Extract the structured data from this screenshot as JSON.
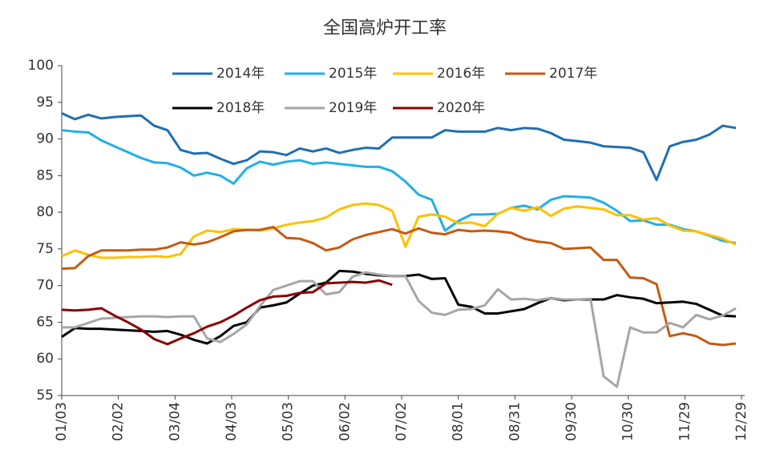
{
  "chart_data": {
    "type": "line",
    "title": "全国高炉开工率",
    "x": [
      0,
      7,
      14,
      21,
      28,
      35,
      42,
      49,
      56,
      63,
      70,
      77,
      84,
      91,
      98,
      105,
      112,
      119,
      126,
      133,
      140,
      147,
      154,
      161,
      168,
      175,
      182,
      189,
      196,
      203,
      210,
      217,
      224,
      231,
      238,
      245,
      252,
      259,
      266,
      273,
      280,
      287,
      294,
      301,
      308,
      315,
      322,
      329,
      336,
      343,
      350,
      357
    ],
    "xlim": [
      0,
      360
    ],
    "xticks": [
      {
        "value": 0,
        "label": "01/03"
      },
      {
        "value": 30,
        "label": "02/02"
      },
      {
        "value": 60,
        "label": "03/04"
      },
      {
        "value": 90,
        "label": "04/03"
      },
      {
        "value": 120,
        "label": "05/03"
      },
      {
        "value": 150,
        "label": "06/02"
      },
      {
        "value": 180,
        "label": "07/02"
      },
      {
        "value": 210,
        "label": "08/01"
      },
      {
        "value": 240,
        "label": "08/31"
      },
      {
        "value": 270,
        "label": "09/30"
      },
      {
        "value": 300,
        "label": "10/30"
      },
      {
        "value": 330,
        "label": "11/29"
      },
      {
        "value": 360,
        "label": "12/29"
      }
    ],
    "ylim": [
      55,
      100
    ],
    "yticks": [
      55,
      60,
      65,
      70,
      75,
      80,
      85,
      90,
      95,
      100
    ],
    "series": [
      {
        "name": "2014年",
        "color": "#1f6fb4",
        "values": [
          93.5,
          92.7,
          93.3,
          92.8,
          93.0,
          93.1,
          93.2,
          91.8,
          91.2,
          88.5,
          88.0,
          88.1,
          87.3,
          86.6,
          87.1,
          88.3,
          88.2,
          87.8,
          88.7,
          88.3,
          88.7,
          88.1,
          88.5,
          88.8,
          88.7,
          90.2,
          90.2,
          90.2,
          90.2,
          91.2,
          91.0,
          91.0,
          91.0,
          91.5,
          91.2,
          91.5,
          91.4,
          90.8,
          89.9,
          89.7,
          89.5,
          89.0,
          88.9,
          88.8,
          88.2,
          84.4,
          89.0,
          89.6,
          89.9,
          90.6,
          91.8,
          91.5
        ]
      },
      {
        "name": "2015年",
        "color": "#1fb0ea",
        "values": [
          91.2,
          91.0,
          90.9,
          89.8,
          89.0,
          88.2,
          87.4,
          86.8,
          86.7,
          86.1,
          85.0,
          85.4,
          85.0,
          83.9,
          86.0,
          86.9,
          86.5,
          86.9,
          87.1,
          86.6,
          86.8,
          86.6,
          86.4,
          86.2,
          86.2,
          85.6,
          84.2,
          82.4,
          81.7,
          77.5,
          78.8,
          79.7,
          79.7,
          79.8,
          80.6,
          80.9,
          80.4,
          81.7,
          82.2,
          82.1,
          82.0,
          81.3,
          80.2,
          78.8,
          78.9,
          78.3,
          78.3,
          77.7,
          77.4,
          76.8,
          76.1,
          75.8
        ]
      },
      {
        "name": "2016年",
        "color": "#ffc000",
        "values": [
          74.0,
          74.8,
          74.2,
          73.8,
          73.8,
          73.9,
          73.9,
          74.0,
          73.9,
          74.3,
          76.7,
          77.5,
          77.3,
          77.7,
          77.6,
          77.5,
          77.8,
          78.3,
          78.6,
          78.8,
          79.3,
          80.4,
          81.0,
          81.2,
          81.0,
          80.2,
          75.3,
          79.4,
          79.7,
          79.4,
          78.5,
          78.6,
          78.1,
          79.8,
          80.6,
          80.2,
          80.7,
          79.5,
          80.5,
          80.8,
          80.6,
          80.4,
          79.6,
          79.6,
          79.0,
          79.2,
          78.2,
          77.5,
          77.4,
          76.9,
          76.4,
          75.6
        ]
      },
      {
        "name": "2017年",
        "color": "#c55a11",
        "values": [
          72.3,
          72.4,
          74.0,
          74.8,
          74.8,
          74.8,
          74.9,
          74.9,
          75.2,
          75.9,
          75.6,
          75.9,
          76.6,
          77.4,
          77.6,
          77.6,
          78.0,
          76.5,
          76.4,
          75.8,
          74.8,
          75.2,
          76.3,
          76.9,
          77.3,
          77.7,
          77.1,
          77.8,
          77.2,
          77.0,
          77.6,
          77.4,
          77.5,
          77.4,
          77.2,
          76.4,
          76.0,
          75.8,
          75.0,
          75.1,
          75.2,
          73.5,
          73.5,
          71.1,
          71.0,
          70.2,
          63.1,
          63.5,
          63.1,
          62.1,
          61.9,
          62.1
        ]
      },
      {
        "name": "2018年",
        "color": "#000000",
        "values": [
          63.0,
          64.2,
          64.1,
          64.1,
          64.0,
          63.9,
          63.8,
          63.7,
          63.8,
          63.3,
          62.6,
          62.1,
          63.1,
          64.5,
          65.0,
          67.0,
          67.3,
          67.7,
          68.9,
          70.0,
          70.4,
          72.0,
          71.9,
          71.6,
          71.4,
          71.3,
          71.3,
          71.5,
          70.9,
          71.0,
          67.4,
          67.1,
          66.2,
          66.2,
          66.5,
          66.8,
          67.6,
          68.3,
          68.0,
          68.1,
          68.1,
          68.1,
          68.7,
          68.4,
          68.2,
          67.6,
          67.7,
          67.8,
          67.5,
          66.7,
          65.9,
          65.8
        ]
      },
      {
        "name": "2019年",
        "color": "#a6a6a6",
        "values": [
          64.3,
          64.3,
          64.9,
          65.5,
          65.6,
          65.7,
          65.8,
          65.8,
          65.7,
          65.8,
          65.8,
          62.8,
          62.3,
          63.4,
          64.7,
          67.2,
          69.4,
          70.0,
          70.6,
          70.6,
          68.8,
          69.1,
          71.2,
          71.8,
          71.5,
          71.3,
          71.3,
          67.9,
          66.3,
          66.0,
          66.7,
          66.8,
          67.3,
          69.5,
          68.1,
          68.2,
          68.0,
          68.3,
          68.1,
          68.1,
          68.2,
          57.6,
          56.2,
          64.3,
          63.6,
          63.6,
          64.9,
          64.3,
          66.0,
          65.4,
          65.9,
          66.9
        ]
      },
      {
        "name": "2020年",
        "color": "#8b0000",
        "values": [
          66.7,
          66.6,
          66.7,
          66.9,
          65.9,
          65.0,
          64.0,
          62.7,
          62.0,
          62.8,
          63.5,
          64.4,
          65.0,
          65.9,
          67.0,
          68.0,
          68.5,
          68.6,
          69.0,
          69.1,
          70.3,
          70.4,
          70.5,
          70.4,
          70.7,
          70.1,
          null,
          null,
          null,
          null,
          null,
          null,
          null,
          null,
          null,
          null,
          null,
          null,
          null,
          null,
          null,
          null,
          null,
          null,
          null,
          null,
          null,
          null,
          null,
          null,
          null,
          null
        ]
      }
    ]
  }
}
